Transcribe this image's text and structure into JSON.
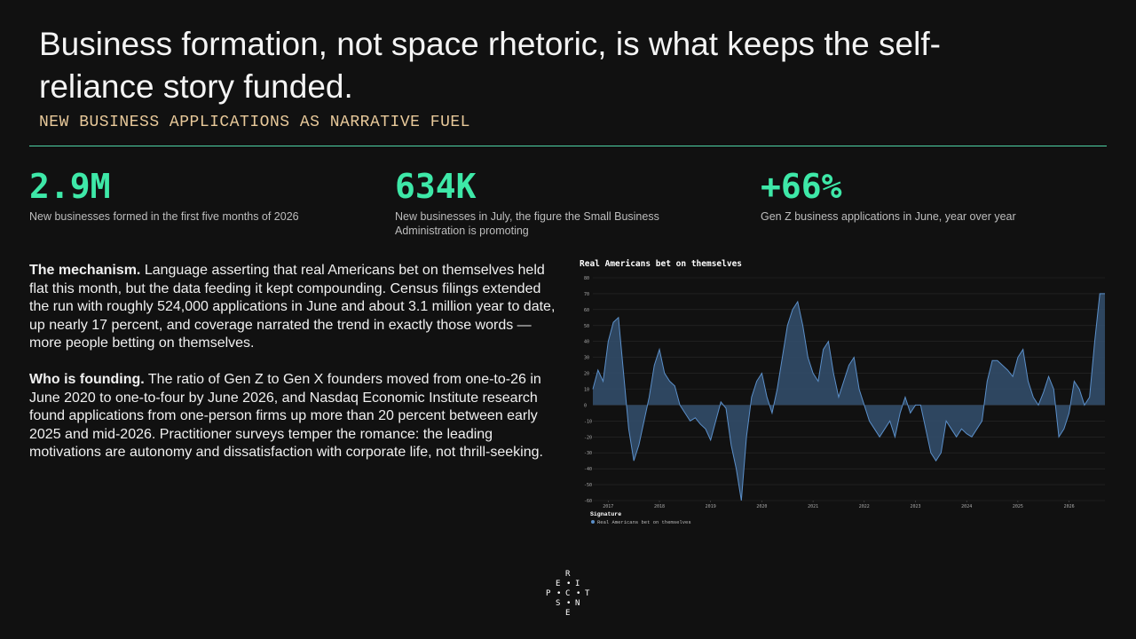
{
  "title": "Business formation, not space rhetoric, is what keeps the self-reliance story funded.",
  "subtitle": "NEW BUSINESS APPLICATIONS AS NARRATIVE FUEL",
  "stats": [
    {
      "value": "2.9M",
      "label": "New businesses formed in the first five months of 2026"
    },
    {
      "value": "634K",
      "label": "New businesses in July, the figure the Small Business Administration is promoting"
    },
    {
      "value": "+66%",
      "label": "Gen Z business applications in June, year over year"
    }
  ],
  "paragraphs": [
    {
      "lead": "The mechanism.",
      "text": "Language asserting that real Americans bet on themselves held flat this month, but the data feeding it kept compounding. Census filings extended the run with roughly 524,000 applications in June and about 3.1 million year to date, up nearly 17 percent, and coverage narrated the trend in exactly those words — more people betting on themselves."
    },
    {
      "lead": "Who is founding.",
      "text": "The ratio of Gen Z to Gen X founders moved from one-to-26 in June 2020 to one-to-four by June 2026, and Nasdaq Economic Institute research found applications from one-person firms up more than 20 percent between early 2025 and mid-2026. Practitioner surveys temper the romance: the leading motivations are autonomy and dissatisfaction with corporate life, not thrill-seeking."
    }
  ],
  "chart_data": {
    "type": "area",
    "title": "Real Americans bet on themselves",
    "legend_title": "Signature",
    "series": [
      {
        "name": "Real Americans bet on themselves",
        "color": "#5b8fc9",
        "fill": "#34506f",
        "x": [
          2016.7,
          2016.8,
          2016.9,
          2017.0,
          2017.1,
          2017.2,
          2017.3,
          2017.4,
          2017.5,
          2017.6,
          2017.7,
          2017.8,
          2017.9,
          2018.0,
          2018.1,
          2018.2,
          2018.3,
          2018.4,
          2018.5,
          2018.6,
          2018.7,
          2018.8,
          2018.9,
          2019.0,
          2019.1,
          2019.2,
          2019.3,
          2019.4,
          2019.5,
          2019.6,
          2019.7,
          2019.8,
          2019.9,
          2020.0,
          2020.1,
          2020.2,
          2020.3,
          2020.4,
          2020.5,
          2020.6,
          2020.7,
          2020.8,
          2020.9,
          2021.0,
          2021.1,
          2021.2,
          2021.3,
          2021.4,
          2021.5,
          2021.6,
          2021.7,
          2021.8,
          2021.9,
          2022.0,
          2022.1,
          2022.2,
          2022.3,
          2022.4,
          2022.5,
          2022.6,
          2022.7,
          2022.8,
          2022.9,
          2023.0,
          2023.1,
          2023.2,
          2023.3,
          2023.4,
          2023.5,
          2023.6,
          2023.7,
          2023.8,
          2023.9,
          2024.0,
          2024.1,
          2024.2,
          2024.3,
          2024.4,
          2024.5,
          2024.6,
          2024.7,
          2024.8,
          2024.9,
          2025.0,
          2025.1,
          2025.2,
          2025.3,
          2025.4,
          2025.5,
          2025.6,
          2025.7,
          2025.8,
          2025.9,
          2026.0,
          2026.1,
          2026.2,
          2026.3,
          2026.4,
          2026.5,
          2026.6,
          2026.7
        ],
        "values": [
          10,
          22,
          15,
          40,
          52,
          55,
          20,
          -15,
          -35,
          -25,
          -10,
          5,
          25,
          35,
          20,
          15,
          12,
          0,
          -5,
          -10,
          -8,
          -12,
          -15,
          -22,
          -10,
          2,
          -2,
          -25,
          -40,
          -60,
          -20,
          5,
          15,
          20,
          5,
          -5,
          10,
          30,
          50,
          60,
          65,
          50,
          30,
          20,
          15,
          35,
          40,
          20,
          5,
          15,
          25,
          30,
          10,
          0,
          -10,
          -15,
          -20,
          -15,
          -10,
          -20,
          -5,
          5,
          -5,
          0,
          0,
          -15,
          -30,
          -35,
          -30,
          -10,
          -15,
          -20,
          -15,
          -18,
          -20,
          -15,
          -10,
          15,
          28,
          28,
          25,
          22,
          18,
          30,
          35,
          15,
          5,
          0,
          8,
          18,
          10,
          -20,
          -15,
          -5,
          15,
          10,
          0,
          5,
          40,
          70,
          70
        ]
      }
    ],
    "xlim": [
      2016.7,
      2026.7
    ],
    "xticks": [
      2017,
      2018,
      2019,
      2020,
      2021,
      2022,
      2023,
      2024,
      2025,
      2026
    ],
    "ylim": [
      -60,
      80
    ],
    "yticks": [
      -60,
      -50,
      -40,
      -30,
      -20,
      -10,
      0,
      10,
      20,
      30,
      40,
      50,
      60,
      70,
      80
    ],
    "grid": true
  },
  "logo": [
    "R",
    "E",
    "I",
    "P",
    "C",
    "T",
    "S",
    "N",
    "E"
  ]
}
